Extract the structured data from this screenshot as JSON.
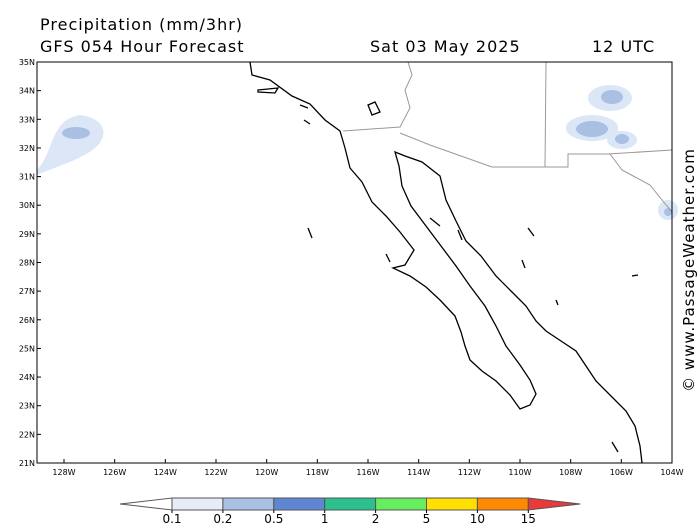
{
  "header": {
    "title": "Precipitation (mm/3hr)",
    "model": "GFS 054 Hour Forecast",
    "date": "Sat 03 May 2025",
    "time": "12 UTC"
  },
  "map": {
    "lat_ticks": [
      {
        "value": 35,
        "label": "35N"
      },
      {
        "value": 34,
        "label": "34N"
      },
      {
        "value": 33,
        "label": "33N"
      },
      {
        "value": 32,
        "label": "32N"
      },
      {
        "value": 31,
        "label": "31N"
      },
      {
        "value": 30,
        "label": "30N"
      },
      {
        "value": 29,
        "label": "29N"
      },
      {
        "value": 28,
        "label": "28N"
      },
      {
        "value": 27,
        "label": "27N"
      },
      {
        "value": 26,
        "label": "26N"
      },
      {
        "value": 25,
        "label": "25N"
      },
      {
        "value": 24,
        "label": "24N"
      },
      {
        "value": 23,
        "label": "23N"
      },
      {
        "value": 22,
        "label": "22N"
      },
      {
        "value": 21,
        "label": "21N"
      }
    ],
    "lon_ticks": [
      {
        "value": -128,
        "label": "128W"
      },
      {
        "value": -126,
        "label": "126W"
      },
      {
        "value": -124,
        "label": "124W"
      },
      {
        "value": -122,
        "label": "122W"
      },
      {
        "value": -120,
        "label": "120W"
      },
      {
        "value": -118,
        "label": "118W"
      },
      {
        "value": -116,
        "label": "116W"
      },
      {
        "value": -114,
        "label": "114W"
      },
      {
        "value": -112,
        "label": "112W"
      },
      {
        "value": -110,
        "label": "110W"
      },
      {
        "value": -108,
        "label": "108W"
      },
      {
        "value": -106,
        "label": "106W"
      },
      {
        "value": -104,
        "label": "104W"
      }
    ]
  },
  "colorbar": {
    "levels": [
      0.1,
      0.2,
      0.5,
      1,
      2,
      5,
      10,
      15
    ],
    "colors": [
      "#ffffff",
      "#e6ecf8",
      "#a9c0e3",
      "#5f86d2",
      "#2cc08f",
      "#66ee5e",
      "#ffe000",
      "#ff8a00",
      "#e83a3a"
    ]
  },
  "credit": "© www.PassageWeather.com"
}
